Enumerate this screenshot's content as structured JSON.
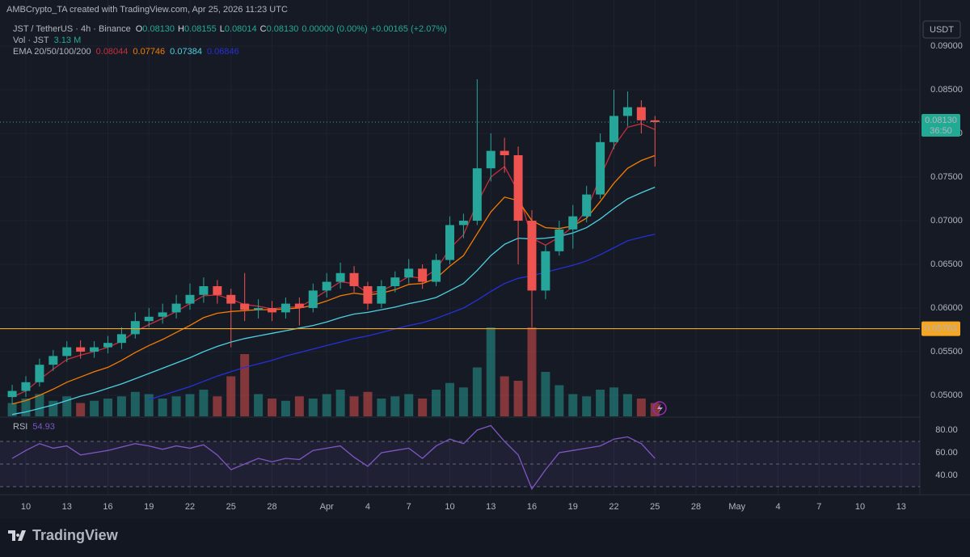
{
  "header": {
    "attribution": "AMBCrypto_TA created with TradingView.com, Apr 25, 2026 11:23 UTC",
    "logo": "TradingView"
  },
  "legend": {
    "symbol": "JST / TetherUS · 4h · Binance",
    "ohlc": [
      {
        "label": "O",
        "value": "0.08130"
      },
      {
        "label": "H",
        "value": "0.08155"
      },
      {
        "label": "L",
        "value": "0.08014"
      },
      {
        "label": "C",
        "value": "0.08130"
      }
    ],
    "change": "0.00000 (0.00%)",
    "change2": "+0.00165 (+2.07%)",
    "vol_label": "Vol · JST",
    "vol_value": "3.13 M",
    "ema_label": "EMA 20/50/100/200",
    "ema_values": [
      "0.08044",
      "0.07746",
      "0.07384",
      "0.06846"
    ],
    "rsi_label": "RSI",
    "rsi_value": "54.93"
  },
  "chart_data": {
    "type": "candlestick",
    "currency": "USDT",
    "up_color": "#26a69a",
    "down_color": "#ef5350",
    "grid": true,
    "x": [
      9,
      10,
      11,
      12,
      13,
      14,
      15,
      16,
      17,
      18,
      19,
      20,
      21,
      22,
      23,
      24,
      25,
      26,
      27,
      28,
      29,
      30,
      31,
      32,
      33,
      34,
      35,
      36,
      37,
      38,
      39,
      40,
      41,
      42,
      43,
      44,
      45,
      46,
      47,
      48,
      49,
      50,
      51,
      52,
      53,
      54,
      55,
      56
    ],
    "open": [
      0.0498,
      0.0505,
      0.0515,
      0.0535,
      0.0545,
      0.0555,
      0.055,
      0.0555,
      0.056,
      0.057,
      0.0585,
      0.059,
      0.0595,
      0.0605,
      0.0615,
      0.0625,
      0.0615,
      0.0605,
      0.0598,
      0.06,
      0.0595,
      0.0605,
      0.06,
      0.062,
      0.063,
      0.064,
      0.0625,
      0.0605,
      0.0625,
      0.0635,
      0.0645,
      0.063,
      0.0655,
      0.0695,
      0.07,
      0.076,
      0.078,
      0.0775,
      0.07,
      0.062,
      0.0665,
      0.069,
      0.0705,
      0.073,
      0.079,
      0.082,
      0.083,
      0.0815
    ],
    "high": [
      0.0512,
      0.0522,
      0.0542,
      0.0552,
      0.0562,
      0.0563,
      0.0562,
      0.0568,
      0.0578,
      0.0595,
      0.06,
      0.0605,
      0.0615,
      0.0628,
      0.0635,
      0.0632,
      0.0622,
      0.064,
      0.061,
      0.0608,
      0.0612,
      0.0612,
      0.0628,
      0.064,
      0.0652,
      0.0648,
      0.063,
      0.0632,
      0.0642,
      0.0656,
      0.065,
      0.0662,
      0.0705,
      0.0708,
      0.0862,
      0.08,
      0.0795,
      0.0785,
      0.0712,
      0.0672,
      0.07,
      0.0718,
      0.074,
      0.08,
      0.085,
      0.0848,
      0.0838,
      0.082
    ],
    "low": [
      0.049,
      0.0498,
      0.051,
      0.0528,
      0.0538,
      0.0542,
      0.0543,
      0.0548,
      0.0553,
      0.0565,
      0.0578,
      0.0582,
      0.0588,
      0.0598,
      0.0606,
      0.0605,
      0.0555,
      0.0585,
      0.0588,
      0.0585,
      0.0588,
      0.058,
      0.0595,
      0.0612,
      0.0622,
      0.0618,
      0.0598,
      0.06,
      0.0618,
      0.0628,
      0.0622,
      0.0625,
      0.065,
      0.068,
      0.0695,
      0.0745,
      0.0755,
      0.065,
      0.0578,
      0.061,
      0.066,
      0.0668,
      0.0698,
      0.0725,
      0.0782,
      0.0808,
      0.08,
      0.0762
    ],
    "close": [
      0.0505,
      0.0515,
      0.0535,
      0.0545,
      0.0555,
      0.055,
      0.0555,
      0.056,
      0.057,
      0.0585,
      0.059,
      0.0595,
      0.0605,
      0.0615,
      0.0625,
      0.0615,
      0.0605,
      0.0598,
      0.06,
      0.0595,
      0.0605,
      0.06,
      0.062,
      0.063,
      0.064,
      0.0625,
      0.0605,
      0.0625,
      0.0635,
      0.0645,
      0.063,
      0.0655,
      0.0695,
      0.07,
      0.076,
      0.078,
      0.0775,
      0.07,
      0.062,
      0.0665,
      0.069,
      0.0705,
      0.073,
      0.079,
      0.082,
      0.083,
      0.0815,
      0.0813
    ],
    "volume": [
      6,
      8,
      10,
      7,
      9,
      6,
      7,
      8,
      9,
      11,
      10,
      8,
      9,
      10,
      12,
      9,
      18,
      28,
      10,
      8,
      7,
      9,
      8,
      10,
      12,
      9,
      11,
      8,
      9,
      10,
      8,
      12,
      15,
      13,
      22,
      40,
      18,
      16,
      40,
      20,
      14,
      10,
      9,
      12,
      13,
      10,
      8,
      6
    ],
    "series": [
      {
        "color": "#c62f3b",
        "values": [
          0.0498,
          0.0505,
          0.0518,
          0.053,
          0.0541,
          0.0546,
          0.055,
          0.0555,
          0.0562,
          0.0573,
          0.0581,
          0.0588,
          0.0596,
          0.0605,
          0.0614,
          0.0615,
          0.061,
          0.0604,
          0.0602,
          0.0599,
          0.0601,
          0.0601,
          0.061,
          0.062,
          0.063,
          0.0628,
          0.0617,
          0.062,
          0.0627,
          0.0636,
          0.0634,
          0.0644,
          0.0668,
          0.0684,
          0.072,
          0.075,
          0.0762,
          0.0733,
          0.068,
          0.0672,
          0.0681,
          0.0693,
          0.0712,
          0.075,
          0.0785,
          0.0807,
          0.0811,
          0.08044
        ]
      },
      {
        "color": "#f57c00",
        "values": [
          0.049,
          0.0494,
          0.05,
          0.0507,
          0.0515,
          0.0521,
          0.0527,
          0.0532,
          0.054,
          0.0549,
          0.0557,
          0.0564,
          0.0572,
          0.058,
          0.0589,
          0.0594,
          0.0596,
          0.0597,
          0.0598,
          0.0598,
          0.0599,
          0.06,
          0.0603,
          0.0608,
          0.0614,
          0.0617,
          0.0615,
          0.0617,
          0.0621,
          0.0627,
          0.0628,
          0.0634,
          0.0648,
          0.066,
          0.0685,
          0.071,
          0.0727,
          0.0723,
          0.07,
          0.0692,
          0.0691,
          0.0694,
          0.0703,
          0.0722,
          0.0743,
          0.076,
          0.0769,
          0.07746
        ]
      },
      {
        "color": "#4dd0e1",
        "values": [
          0.0478,
          0.0481,
          0.0485,
          0.0489,
          0.0494,
          0.0499,
          0.0503,
          0.0508,
          0.0513,
          0.0519,
          0.0525,
          0.0531,
          0.0537,
          0.0543,
          0.055,
          0.0556,
          0.0561,
          0.0565,
          0.0568,
          0.0571,
          0.0574,
          0.0577,
          0.058,
          0.0584,
          0.0589,
          0.0593,
          0.0595,
          0.0598,
          0.0601,
          0.0605,
          0.0608,
          0.0612,
          0.062,
          0.0628,
          0.0643,
          0.066,
          0.0673,
          0.068,
          0.0679,
          0.068,
          0.0682,
          0.0686,
          0.0692,
          0.0702,
          0.0714,
          0.0725,
          0.0732,
          0.07384
        ]
      },
      {
        "color": "#2730d6",
        "values": [
          null,
          null,
          null,
          null,
          null,
          null,
          null,
          null,
          null,
          null,
          0.0495,
          0.05,
          0.0505,
          0.051,
          0.0516,
          0.0522,
          0.0527,
          0.0532,
          0.0536,
          0.054,
          0.0545,
          0.0549,
          0.0553,
          0.0557,
          0.0561,
          0.0565,
          0.0568,
          0.0572,
          0.0576,
          0.058,
          0.0583,
          0.0588,
          0.0594,
          0.06,
          0.0609,
          0.0619,
          0.0628,
          0.0634,
          0.0637,
          0.0641,
          0.0645,
          0.0649,
          0.0654,
          0.0661,
          0.0669,
          0.0677,
          0.0681,
          0.06846
        ]
      }
    ],
    "rsi": {
      "color": "#7e57c2",
      "values": [
        55,
        62,
        68,
        64,
        66,
        58,
        60,
        62,
        65,
        68,
        66,
        63,
        66,
        64,
        67,
        58,
        45,
        50,
        55,
        52,
        55,
        54,
        62,
        64,
        66,
        56,
        48,
        60,
        62,
        64,
        55,
        66,
        72,
        68,
        80,
        84,
        70,
        58,
        28,
        45,
        60,
        62,
        64,
        66,
        72,
        74,
        68,
        54.93
      ],
      "ylim": [
        22.86,
        90
      ],
      "yticks": [
        {
          "value": 80,
          "label": "80.00"
        },
        {
          "value": 60,
          "label": "60.00"
        },
        {
          "value": 40,
          "label": "40.00"
        }
      ],
      "levels": [
        70,
        50,
        30
      ]
    },
    "xlim": [
      8.11,
      75.37
    ],
    "xticks": [
      {
        "value": 10,
        "label": "10"
      },
      {
        "value": 13,
        "label": "13"
      },
      {
        "value": 16,
        "label": "16"
      },
      {
        "value": 19,
        "label": "19"
      },
      {
        "value": 22,
        "label": "22"
      },
      {
        "value": 25,
        "label": "25"
      },
      {
        "value": 28,
        "label": "28"
      },
      {
        "value": 32,
        "label": "Apr"
      },
      {
        "value": 35,
        "label": "4"
      },
      {
        "value": 38,
        "label": "7"
      },
      {
        "value": 41,
        "label": "10"
      },
      {
        "value": 44,
        "label": "13"
      },
      {
        "value": 47,
        "label": "16"
      },
      {
        "value": 50,
        "label": "19"
      },
      {
        "value": 53,
        "label": "22"
      },
      {
        "value": 56,
        "label": "25"
      },
      {
        "value": 59,
        "label": "28"
      },
      {
        "value": 62,
        "label": "May"
      },
      {
        "value": 65,
        "label": "4"
      },
      {
        "value": 68,
        "label": "7"
      },
      {
        "value": 71,
        "label": "10"
      },
      {
        "value": 74,
        "label": "13"
      }
    ],
    "ylim": [
      0.04759,
      0.09528
    ],
    "yticks": [
      {
        "value": 0.05,
        "label": "0.05000"
      },
      {
        "value": 0.055,
        "label": "0.05500"
      },
      {
        "value": 0.06,
        "label": "0.06000"
      },
      {
        "value": 0.065,
        "label": "0.06500"
      },
      {
        "value": 0.07,
        "label": "0.07000"
      },
      {
        "value": 0.075,
        "label": "0.07500"
      },
      {
        "value": 0.08,
        "label": "0.08000"
      },
      {
        "value": 0.085,
        "label": "0.08500"
      },
      {
        "value": 0.09,
        "label": "0.09000"
      }
    ],
    "hline": {
      "value": 0.05763,
      "label": "0.05763",
      "color": "#f5a623"
    },
    "last_price": {
      "value": 0.0813,
      "label": "0.08130",
      "countdown": "36:50",
      "color": "#22ab94"
    }
  }
}
